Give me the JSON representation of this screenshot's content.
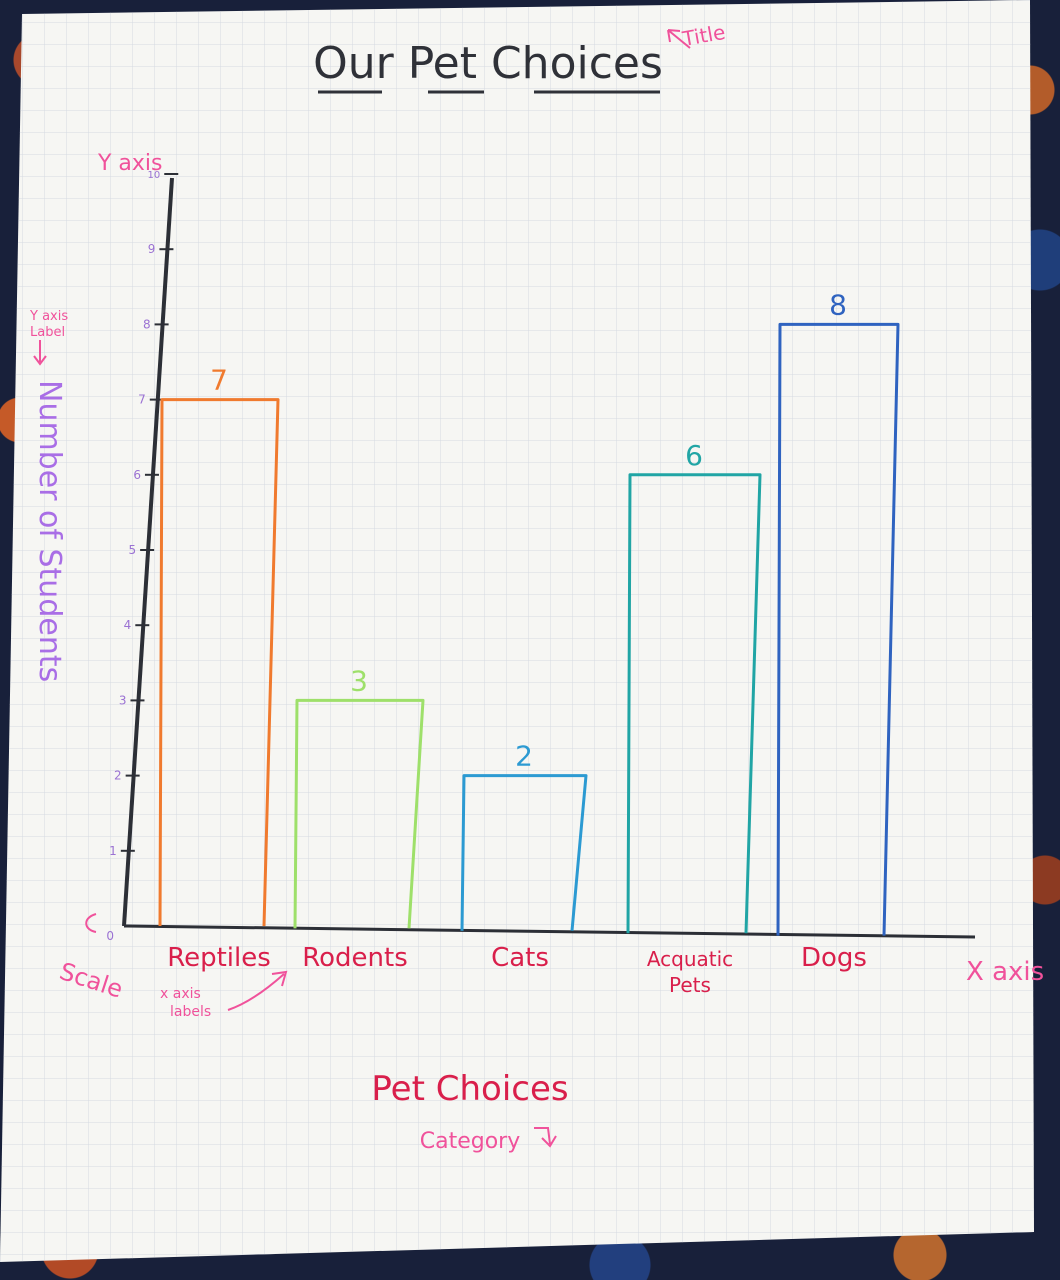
{
  "chart_data": {
    "type": "bar",
    "title": "Our Pet Choices",
    "xlabel": "Pet Choices",
    "ylabel": "Number of Students",
    "categories": [
      "Reptiles",
      "Rodents",
      "Cats",
      "Acquatic Pets",
      "Dogs"
    ],
    "values": [
      7,
      3,
      2,
      6,
      8
    ],
    "data_labels": [
      "7",
      "3",
      "2",
      "6",
      "8"
    ],
    "bar_colors": [
      "#f07a2e",
      "#9ee06a",
      "#2c9ad2",
      "#21a5a5",
      "#2f63c0"
    ],
    "ylim": [
      0,
      10
    ],
    "y_ticks": [
      "0",
      "1",
      "2",
      "3",
      "4",
      "5",
      "6",
      "7",
      "8",
      "9",
      "10"
    ],
    "grid": true,
    "legend": "none"
  },
  "annotations": {
    "title_note": "Title",
    "y_axis_note": "Y axis",
    "y_label_note_line1": "Y axis",
    "y_label_note_line2": "Label",
    "scale_note": "Scale",
    "x_labels_note_line1": "x axis",
    "x_labels_note_line2": "labels",
    "x_axis_note": "X axis",
    "category_note": "Category"
  },
  "colors": {
    "paper": "#f6f6f3",
    "grid": "#cfd5de",
    "axis": "#2c2f36",
    "title_ink": "#2f3138",
    "annotation_pink": "#f0529b",
    "label_red": "#d91f4b",
    "ylabel_purple": "#a96ee6",
    "tick_purple": "#9b72d3"
  }
}
